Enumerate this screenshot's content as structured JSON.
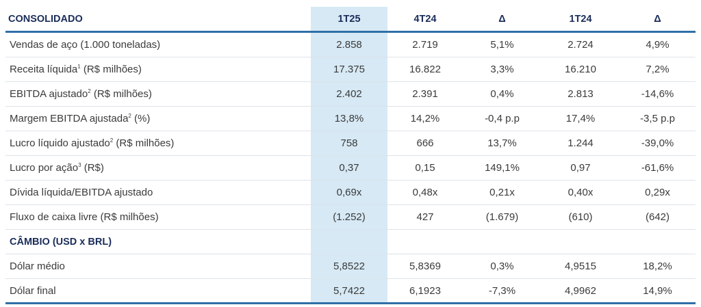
{
  "table": {
    "headers": [
      "CONSOLIDADO",
      "1T25",
      "4T24",
      "Δ",
      "1T24",
      "Δ"
    ],
    "rows": [
      {
        "label": "Vendas de aço (1.000 toneladas)",
        "sup": "",
        "suffix": "",
        "values": [
          "2.858",
          "2.719",
          "5,1%",
          "2.724",
          "4,9%"
        ]
      },
      {
        "label": "Receita líquida",
        "sup": "1",
        "suffix": " (R$ milhões)",
        "values": [
          "17.375",
          "16.822",
          "3,3%",
          "16.210",
          "7,2%"
        ]
      },
      {
        "label": "EBITDA ajustado",
        "sup": "2",
        "suffix": " (R$ milhões)",
        "values": [
          "2.402",
          "2.391",
          "0,4%",
          "2.813",
          "-14,6%"
        ]
      },
      {
        "label": "Margem EBITDA ajustada",
        "sup": "2",
        "suffix": " (%)",
        "values": [
          "13,8%",
          "14,2%",
          "-0,4 p.p",
          "17,4%",
          "-3,5 p.p"
        ]
      },
      {
        "label": "Lucro líquido ajustado",
        "sup": "2",
        "suffix": " (R$ milhões)",
        "values": [
          "758",
          "666",
          "13,7%",
          "1.244",
          "-39,0%"
        ]
      },
      {
        "label": "Lucro por ação",
        "sup": "3",
        "suffix": " (R$)",
        "values": [
          "0,37",
          "0,15",
          "149,1%",
          "0,97",
          "-61,6%"
        ]
      },
      {
        "label": "Dívida líquida/EBITDA ajustado",
        "sup": "",
        "suffix": "",
        "values": [
          "0,69x",
          "0,48x",
          "0,21x",
          "0,40x",
          "0,29x"
        ]
      },
      {
        "label": "Fluxo de caixa livre (R$ milhões)",
        "sup": "",
        "suffix": "",
        "values": [
          "(1.252)",
          "427",
          "(1.679)",
          "(610)",
          "(642)"
        ]
      }
    ],
    "section2_title": "CÂMBIO (USD x BRL)",
    "rows2": [
      {
        "label": "Dólar médio",
        "values": [
          "5,8522",
          "5,8369",
          "0,3%",
          "4,9515",
          "18,2%"
        ]
      },
      {
        "label": "Dólar final",
        "values": [
          "5,7422",
          "6,1923",
          "-7,3%",
          "4,9962",
          "14,9%"
        ]
      }
    ]
  }
}
